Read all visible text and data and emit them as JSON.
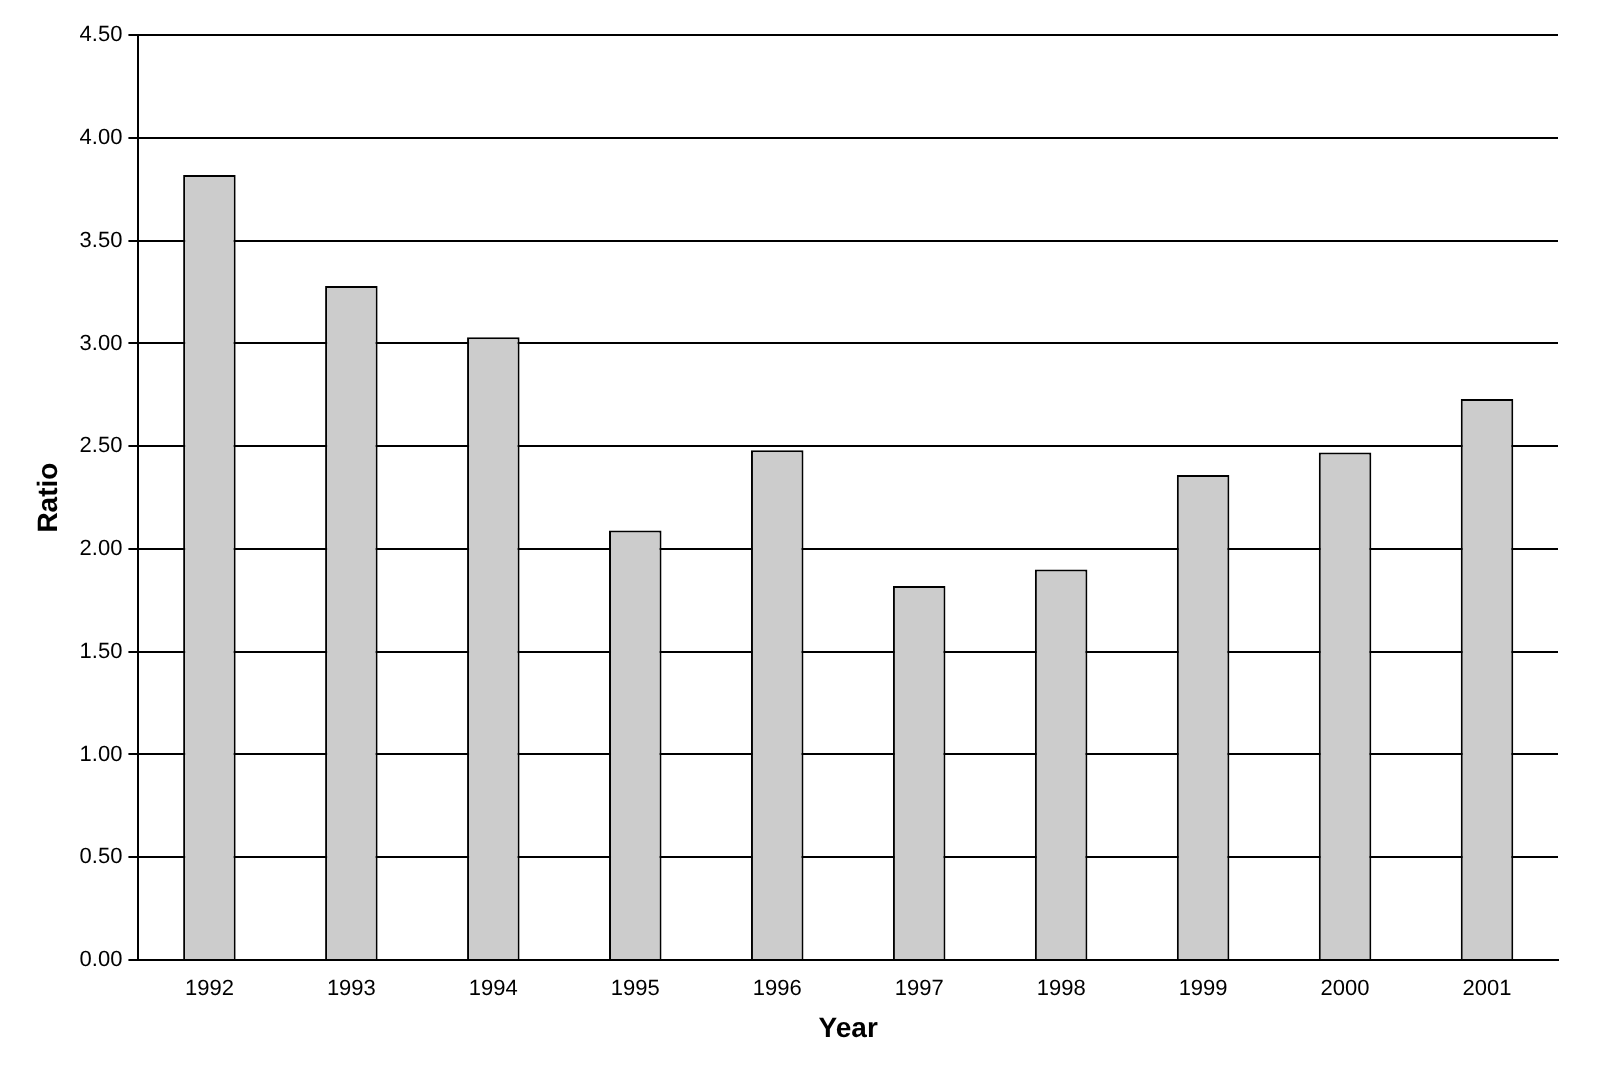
{
  "chart_data": {
    "type": "bar",
    "xlabel": "Year",
    "ylabel": "Ratio",
    "categories": [
      "1992",
      "1993",
      "1994",
      "1995",
      "1996",
      "1997",
      "1998",
      "1999",
      "2000",
      "2001"
    ],
    "values": [
      3.82,
      3.28,
      3.03,
      2.09,
      2.48,
      1.82,
      1.9,
      2.36,
      2.47,
      2.73
    ],
    "color": "#cccccc",
    "ylim": [
      0,
      4.5
    ],
    "yticks": [
      {
        "value": 0,
        "label": "0.00"
      },
      {
        "value": 0.5,
        "label": "0.50"
      },
      {
        "value": 1,
        "label": "1.00"
      },
      {
        "value": 1.5,
        "label": "1.50"
      },
      {
        "value": 2,
        "label": "2.00"
      },
      {
        "value": 2.5,
        "label": "2.50"
      },
      {
        "value": 3,
        "label": "3.00"
      },
      {
        "value": 3.5,
        "label": "3.50"
      },
      {
        "value": 4,
        "label": "4.00"
      },
      {
        "value": 4.5,
        "label": "4.50"
      }
    ],
    "grid": "y",
    "legend": false
  }
}
